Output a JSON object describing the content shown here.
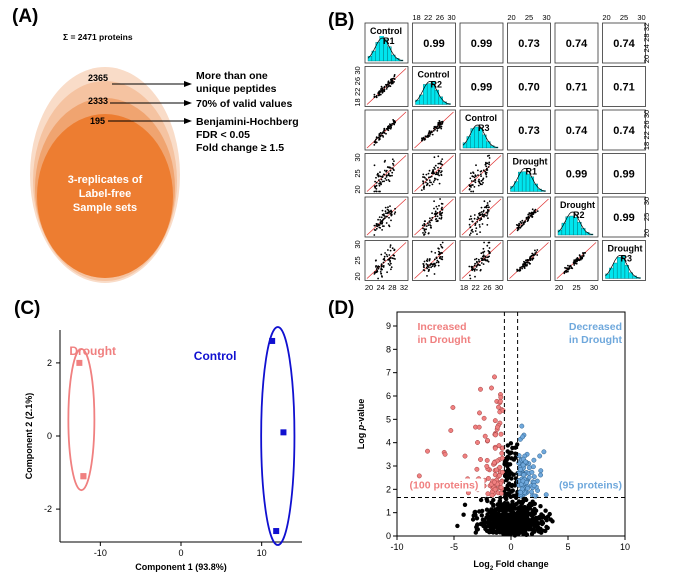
{
  "panelA": {
    "label": "(A)",
    "sigma": "Σ = 2471 proteins",
    "levels": [
      {
        "count": "2365",
        "desc": [
          "More than one",
          "unique peptides"
        ]
      },
      {
        "count": "2333",
        "desc": [
          "70% of valid values"
        ]
      },
      {
        "count": "195",
        "desc": [
          "Benjamini-Hochberg",
          "FDR < 0.05",
          "Fold change ≥ 1.5"
        ]
      }
    ],
    "core": [
      "3-replicates of",
      "Label-free",
      "Sample sets"
    ],
    "colors": {
      "outer": "#f9dcc8",
      "mid": "#f5c3a1",
      "inner": "#f0a470",
      "core": "#ed7d31"
    }
  },
  "panelB": {
    "label": "(B)",
    "samples": [
      {
        "group": "Control",
        "rep": "R1"
      },
      {
        "group": "Control",
        "rep": "R2"
      },
      {
        "group": "Control",
        "rep": "R3"
      },
      {
        "group": "Drought",
        "rep": "R1"
      },
      {
        "group": "Drought",
        "rep": "R2"
      },
      {
        "group": "Drought",
        "rep": "R3"
      }
    ],
    "correlations": {
      "0-1": "0.99",
      "0-2": "0.99",
      "0-3": "0.73",
      "0-4": "0.74",
      "0-5": "0.74",
      "1-2": "0.99",
      "1-3": "0.70",
      "1-4": "0.71",
      "1-5": "0.71",
      "2-3": "0.73",
      "2-4": "0.74",
      "2-5": "0.74",
      "3-4": "0.99",
      "3-5": "0.99",
      "4-5": "0.99"
    },
    "axis_top": [
      {
        "col": 1,
        "ticks": [
          "18",
          "22",
          "26",
          "30"
        ]
      },
      {
        "col": 3,
        "ticks": [
          "20",
          "25",
          "30"
        ]
      },
      {
        "col": 5,
        "ticks": [
          "20",
          "25",
          "30"
        ]
      }
    ],
    "axis_bottom": [
      {
        "col": 0,
        "ticks": [
          "20",
          "24",
          "28",
          "32"
        ]
      },
      {
        "col": 2,
        "ticks": [
          "18",
          "22",
          "26",
          "30"
        ]
      },
      {
        "col": 4,
        "ticks": [
          "20",
          "25",
          "30"
        ]
      }
    ],
    "axis_left": [
      {
        "row": 1,
        "ticks": [
          "18",
          "22",
          "26",
          "30"
        ]
      },
      {
        "row": 3,
        "ticks": [
          "20",
          "25",
          "30"
        ]
      },
      {
        "row": 5,
        "ticks": [
          "20",
          "25",
          "30"
        ]
      }
    ],
    "axis_right": [
      {
        "row": 0,
        "ticks": [
          "20",
          "24",
          "28",
          "32"
        ]
      },
      {
        "row": 2,
        "ticks": [
          "18",
          "22",
          "26",
          "30"
        ]
      },
      {
        "row": 4,
        "ticks": [
          "20",
          "25",
          "30"
        ]
      }
    ],
    "hist_color": "#00e5ee"
  },
  "panelC": {
    "label": "(C)",
    "chart_data": {
      "type": "scatter",
      "xlabel": "Component 1 (93.8%)",
      "ylabel": "Component 2 (2.1%)",
      "xlim": [
        -15,
        15
      ],
      "ylim": [
        -2.9,
        2.9
      ],
      "xticks": [
        {
          "v": -10,
          "t": "-10"
        },
        {
          "v": 0,
          "t": "0"
        },
        {
          "v": 10,
          "t": "10"
        }
      ],
      "yticks": [
        {
          "v": 2,
          "t": "2"
        },
        {
          "v": 0,
          "t": "0"
        },
        {
          "v": -2,
          "t": "-2"
        }
      ],
      "series": [
        {
          "name": "Drought",
          "color": "#f08080",
          "points": [
            [
              -12.6,
              2.0
            ],
            [
              -12.1,
              -1.1
            ],
            [
              -12.1,
              -1.1
            ]
          ]
        },
        {
          "name": "Control",
          "color": "#1010d0",
          "points": [
            [
              11.3,
              2.6
            ],
            [
              12.7,
              0.1
            ],
            [
              11.8,
              -2.6
            ]
          ]
        }
      ]
    }
  },
  "panelD": {
    "label": "(D)",
    "chart_data": {
      "type": "scatter",
      "xlabel_prefix": "Log",
      "xlabel_sub": "2",
      "xlabel_suffix": " Fold change",
      "ylabel_prefix": "Log ",
      "ylabel_italic": "p",
      "ylabel_suffix": "-value",
      "xlim": [
        -10,
        10
      ],
      "ylim": [
        0,
        9.6
      ],
      "xticks": [
        -10,
        -5,
        0,
        5,
        10
      ],
      "yticks": [
        0,
        1,
        2,
        3,
        4,
        5,
        6,
        7,
        8,
        9
      ],
      "threshold_y": 1.65,
      "threshold_x": [
        -0.58,
        0.58
      ],
      "increased_label": [
        "Increased",
        "in Drought"
      ],
      "decreased_label": [
        "Decreased",
        "in Drought"
      ],
      "increased_count": "(100 proteins)",
      "decreased_count": "(95 proteins)",
      "colors": {
        "increased": "#f08080",
        "decreased": "#6fa8dc",
        "ns": "#000000"
      }
    }
  }
}
